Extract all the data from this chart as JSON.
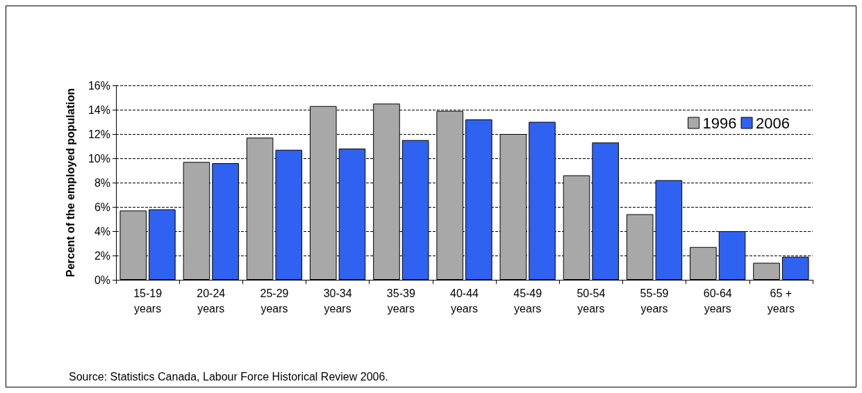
{
  "chart_data": {
    "type": "bar",
    "ylabel": "Percent of the employed population",
    "categories": [
      "15-19 years",
      "20-24 years",
      "25-29 years",
      "30-34 years",
      "35-39 years",
      "40-44 years",
      "45-49 years",
      "50-54 years",
      "55-59 years",
      "60-64 years",
      "65 + years"
    ],
    "series": [
      {
        "name": "1996",
        "color": "#a8a8a8",
        "values": [
          5.7,
          9.7,
          11.7,
          14.3,
          14.5,
          13.9,
          12.0,
          8.6,
          5.4,
          2.7,
          1.4
        ]
      },
      {
        "name": "2006",
        "color": "#2f62f0",
        "values": [
          5.8,
          9.6,
          10.7,
          10.8,
          11.5,
          13.2,
          13.0,
          11.3,
          8.2,
          4.0,
          1.9
        ]
      }
    ],
    "ylim": [
      0,
      16
    ],
    "yticks": [
      {
        "value": 0,
        "label": "0%"
      },
      {
        "value": 2,
        "label": "2%"
      },
      {
        "value": 4,
        "label": "4%"
      },
      {
        "value": 6,
        "label": "6%"
      },
      {
        "value": 8,
        "label": "8%"
      },
      {
        "value": 10,
        "label": "10%"
      },
      {
        "value": 12,
        "label": "12%"
      },
      {
        "value": 14,
        "label": "14%"
      },
      {
        "value": 16,
        "label": "16%"
      }
    ],
    "grid": "y",
    "legend": "top right",
    "annotations": [
      "Source: Statistics Canada, Labour Force Historical Review 2006."
    ]
  }
}
